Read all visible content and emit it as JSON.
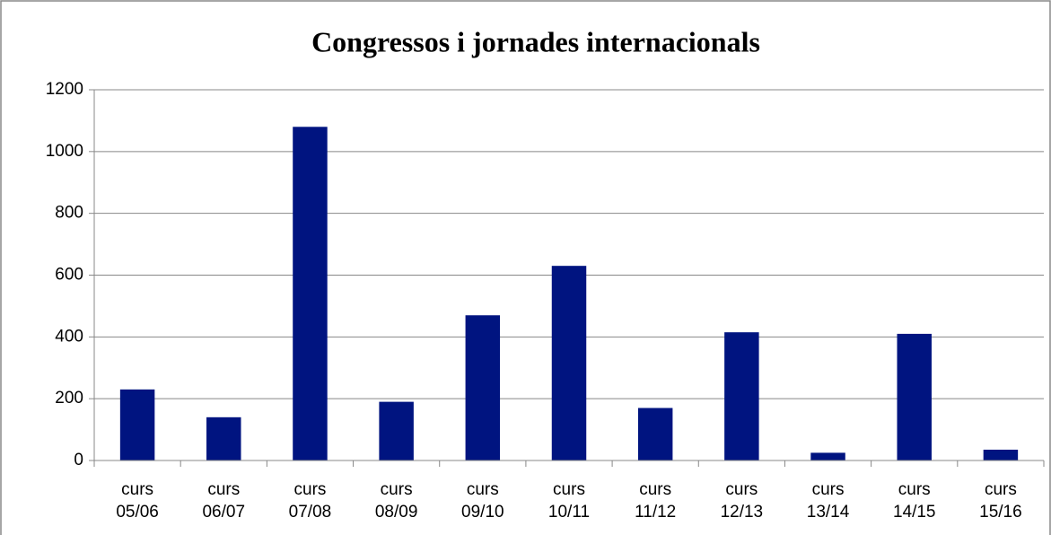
{
  "chart_data": {
    "type": "bar",
    "title": "Congressos i jornades internacionals",
    "categories": [
      "curs 05/06",
      "curs 06/07",
      "curs 07/08",
      "curs 08/09",
      "curs 09/10",
      "curs 10/11",
      "curs 11/12",
      "curs 12/13",
      "curs 13/14",
      "curs 14/15",
      "curs 15/16"
    ],
    "values": [
      230,
      140,
      1080,
      190,
      470,
      630,
      170,
      415,
      25,
      410,
      35
    ],
    "color": "#001480",
    "ylim": [
      0,
      1200
    ],
    "yticks": [
      0,
      200,
      400,
      600,
      800,
      1000,
      1200
    ],
    "grid": true
  }
}
